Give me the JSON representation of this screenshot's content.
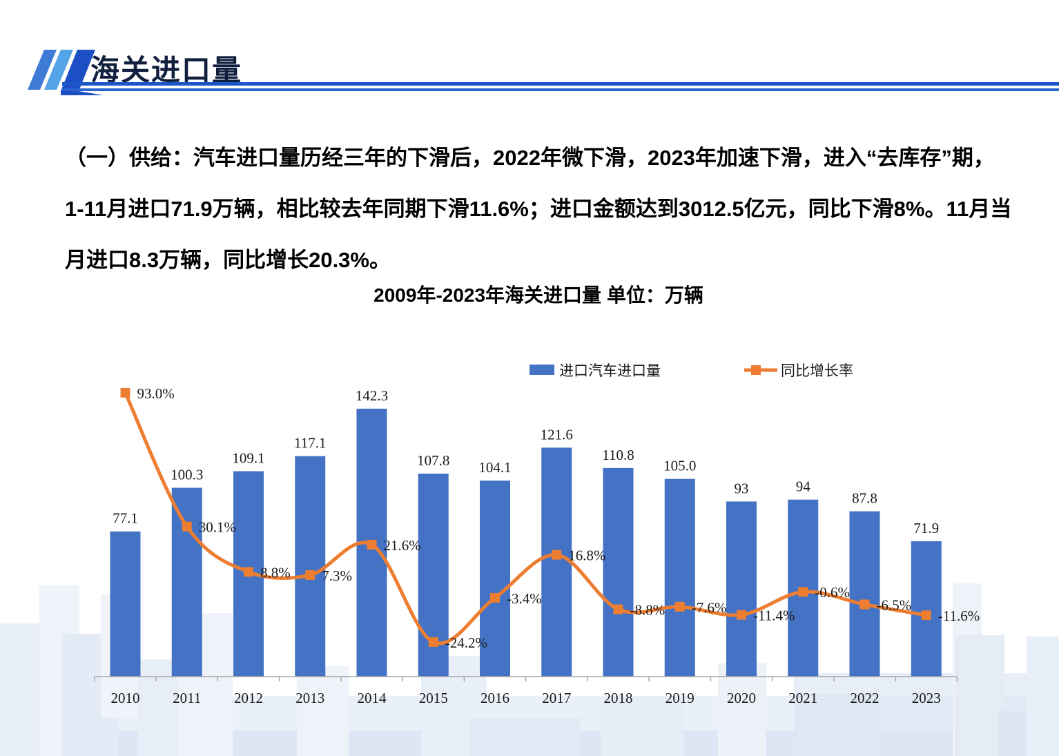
{
  "header": {
    "title": "海关进口量"
  },
  "paragraph": {
    "lines": [
      "（一）供给：汽车进口量历经三年的下滑后，2022年微下滑，2023年加速下滑，进入“去库存”期，",
      "1-11月进口71.9万辆，相比较去年同期下滑11.6%；进口金额达到3012.5亿元，同比下滑8%。11月当",
      "月进口8.3万辆，同比增长20.3%。"
    ]
  },
  "chart": {
    "title": "2009年-2023年海关进口量 单位：万辆"
  },
  "chart_data": {
    "type": "bar+line",
    "title": "2009年-2023年海关进口量 单位：万辆",
    "categories": [
      "2010",
      "2011",
      "2012",
      "2013",
      "2014",
      "2015",
      "2016",
      "2017",
      "2018",
      "2019",
      "2020",
      "2021",
      "2022",
      "2023"
    ],
    "series": [
      {
        "name": "进口汽车进口量",
        "type": "bar",
        "color": "#4472C4",
        "values": [
          77.1,
          100.3,
          109.1,
          117.1,
          142.3,
          107.8,
          104.1,
          121.6,
          110.8,
          105.0,
          93,
          94,
          87.8,
          71.9
        ],
        "labels": [
          "77.1",
          "100.3",
          "109.1",
          "117.1",
          "142.3",
          "107.8",
          "104.1",
          "121.6",
          "110.8",
          "105.0",
          "93",
          "94",
          "87.8",
          "71.9"
        ]
      },
      {
        "name": "同比增长率",
        "type": "line",
        "color": "#ED7D31",
        "values": [
          93.0,
          30.1,
          8.8,
          7.3,
          21.6,
          -24.2,
          -3.4,
          16.8,
          -8.8,
          -7.6,
          -11.4,
          -0.6,
          -6.5,
          -11.6
        ],
        "labels": [
          "93.0%",
          "30.1%",
          "8.8%",
          "7.3%",
          "21.6%",
          "-24.2%",
          "-3.4%",
          "16.8%",
          "-8.8%",
          "-7.6%",
          "-11.4%",
          "-0.6%",
          "-6.5%",
          "-11.6%"
        ]
      }
    ],
    "legend": [
      "进口汽车进口量",
      "同比增长率"
    ],
    "legend_position": "top",
    "grid": false,
    "bar_axis_label": "万辆",
    "axis_color": "#a6a6a6",
    "label_color": "#1a1a1a"
  }
}
